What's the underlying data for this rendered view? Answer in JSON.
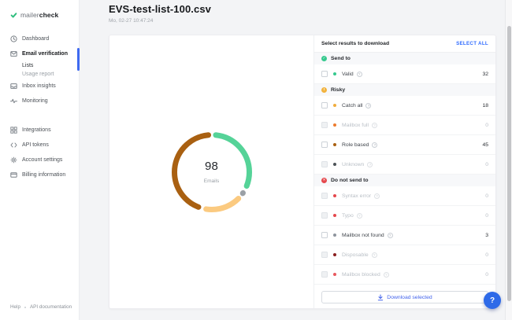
{
  "colors": {
    "accent_blue": "#2f6bff",
    "active_bar": "#3f6af0",
    "help_fab": "#2e6ae8",
    "send_to_green": "#36c98e",
    "risky_yellow": "#f2b33e",
    "do_not_send_red": "#e5484d"
  },
  "sidebar": {
    "logo": {
      "prefix": "mailer",
      "suffix": "check",
      "icon": "check-logo-icon"
    },
    "nav_main": [
      {
        "label": "Dashboard",
        "icon": "dashboard",
        "style": "normal"
      },
      {
        "label": "Email verification",
        "icon": "email-verification",
        "style": "active"
      },
      {
        "label": "Lists",
        "icon": null,
        "style": "sub"
      },
      {
        "label": "Usage report",
        "icon": null,
        "style": "sub-muted"
      },
      {
        "label": "Inbox insights",
        "icon": "inbox-insights",
        "style": "normal"
      },
      {
        "label": "Monitoring",
        "icon": "monitoring",
        "style": "normal"
      }
    ],
    "nav_secondary": [
      {
        "label": "Integrations",
        "icon": "integrations",
        "style": "normal"
      },
      {
        "label": "API tokens",
        "icon": "api-tokens",
        "style": "normal"
      },
      {
        "label": "Account settings",
        "icon": "account-settings",
        "style": "normal"
      },
      {
        "label": "Billing information",
        "icon": "billing",
        "style": "normal"
      }
    ],
    "footer_links": [
      "Help",
      "API documentation"
    ]
  },
  "header": {
    "title": "EVS-test-list-100.csv",
    "timestamp": "Mo, 02-27 10:47:24"
  },
  "chart_data": {
    "type": "donut",
    "center_value": "98",
    "center_label": "Emails",
    "total": 98,
    "segments": [
      {
        "label": "Valid",
        "value": 32,
        "color": "#55d398"
      },
      {
        "label": "Mailbox not found",
        "value": 3,
        "color": "#9aa0a6"
      },
      {
        "label": "Catch all",
        "value": 18,
        "color": "#fbca80"
      },
      {
        "label": "Role based",
        "value": 45,
        "color": "#a96011"
      }
    ]
  },
  "panel": {
    "title": "Select results to download",
    "select_all_label": "SELECT ALL",
    "sections": [
      {
        "label": "Send to",
        "icon": "check-circle-icon",
        "icon_color": "#36c98e",
        "icon_glyph": "✓",
        "rows": [
          {
            "label": "Valid",
            "value": "32",
            "dot_color": "#36c98e",
            "muted": false
          }
        ]
      },
      {
        "label": "Risky",
        "icon": "alert-circle-icon",
        "icon_color": "#f2b33e",
        "icon_glyph": "!",
        "rows": [
          {
            "label": "Catch all",
            "value": "18",
            "dot_color": "#f0ad3e",
            "muted": false
          },
          {
            "label": "Mailbox full",
            "value": "0",
            "dot_color": "#ed7c2f",
            "muted": true
          },
          {
            "label": "Role based",
            "value": "45",
            "dot_color": "#a96011",
            "muted": false
          },
          {
            "label": "Unknown",
            "value": "0",
            "dot_color": "#4d5358",
            "muted": true
          }
        ]
      },
      {
        "label": "Do not send to",
        "icon": "cross-circle-icon",
        "icon_color": "#e5484d",
        "icon_glyph": "✕",
        "rows": [
          {
            "label": "Syntax error",
            "value": "0",
            "dot_color": "#e5484d",
            "muted": true
          },
          {
            "label": "Typo",
            "value": "0",
            "dot_color": "#e5484d",
            "muted": true
          },
          {
            "label": "Mailbox not found",
            "value": "3",
            "dot_color": "#8e959d",
            "muted": false
          },
          {
            "label": "Disposable",
            "value": "0",
            "dot_color": "#8a1f1f",
            "muted": true
          },
          {
            "label": "Mailbox blocked",
            "value": "0",
            "dot_color": "#e8595e",
            "muted": true
          }
        ]
      }
    ],
    "download_label": "Download selected"
  },
  "help_fab_label": "?"
}
